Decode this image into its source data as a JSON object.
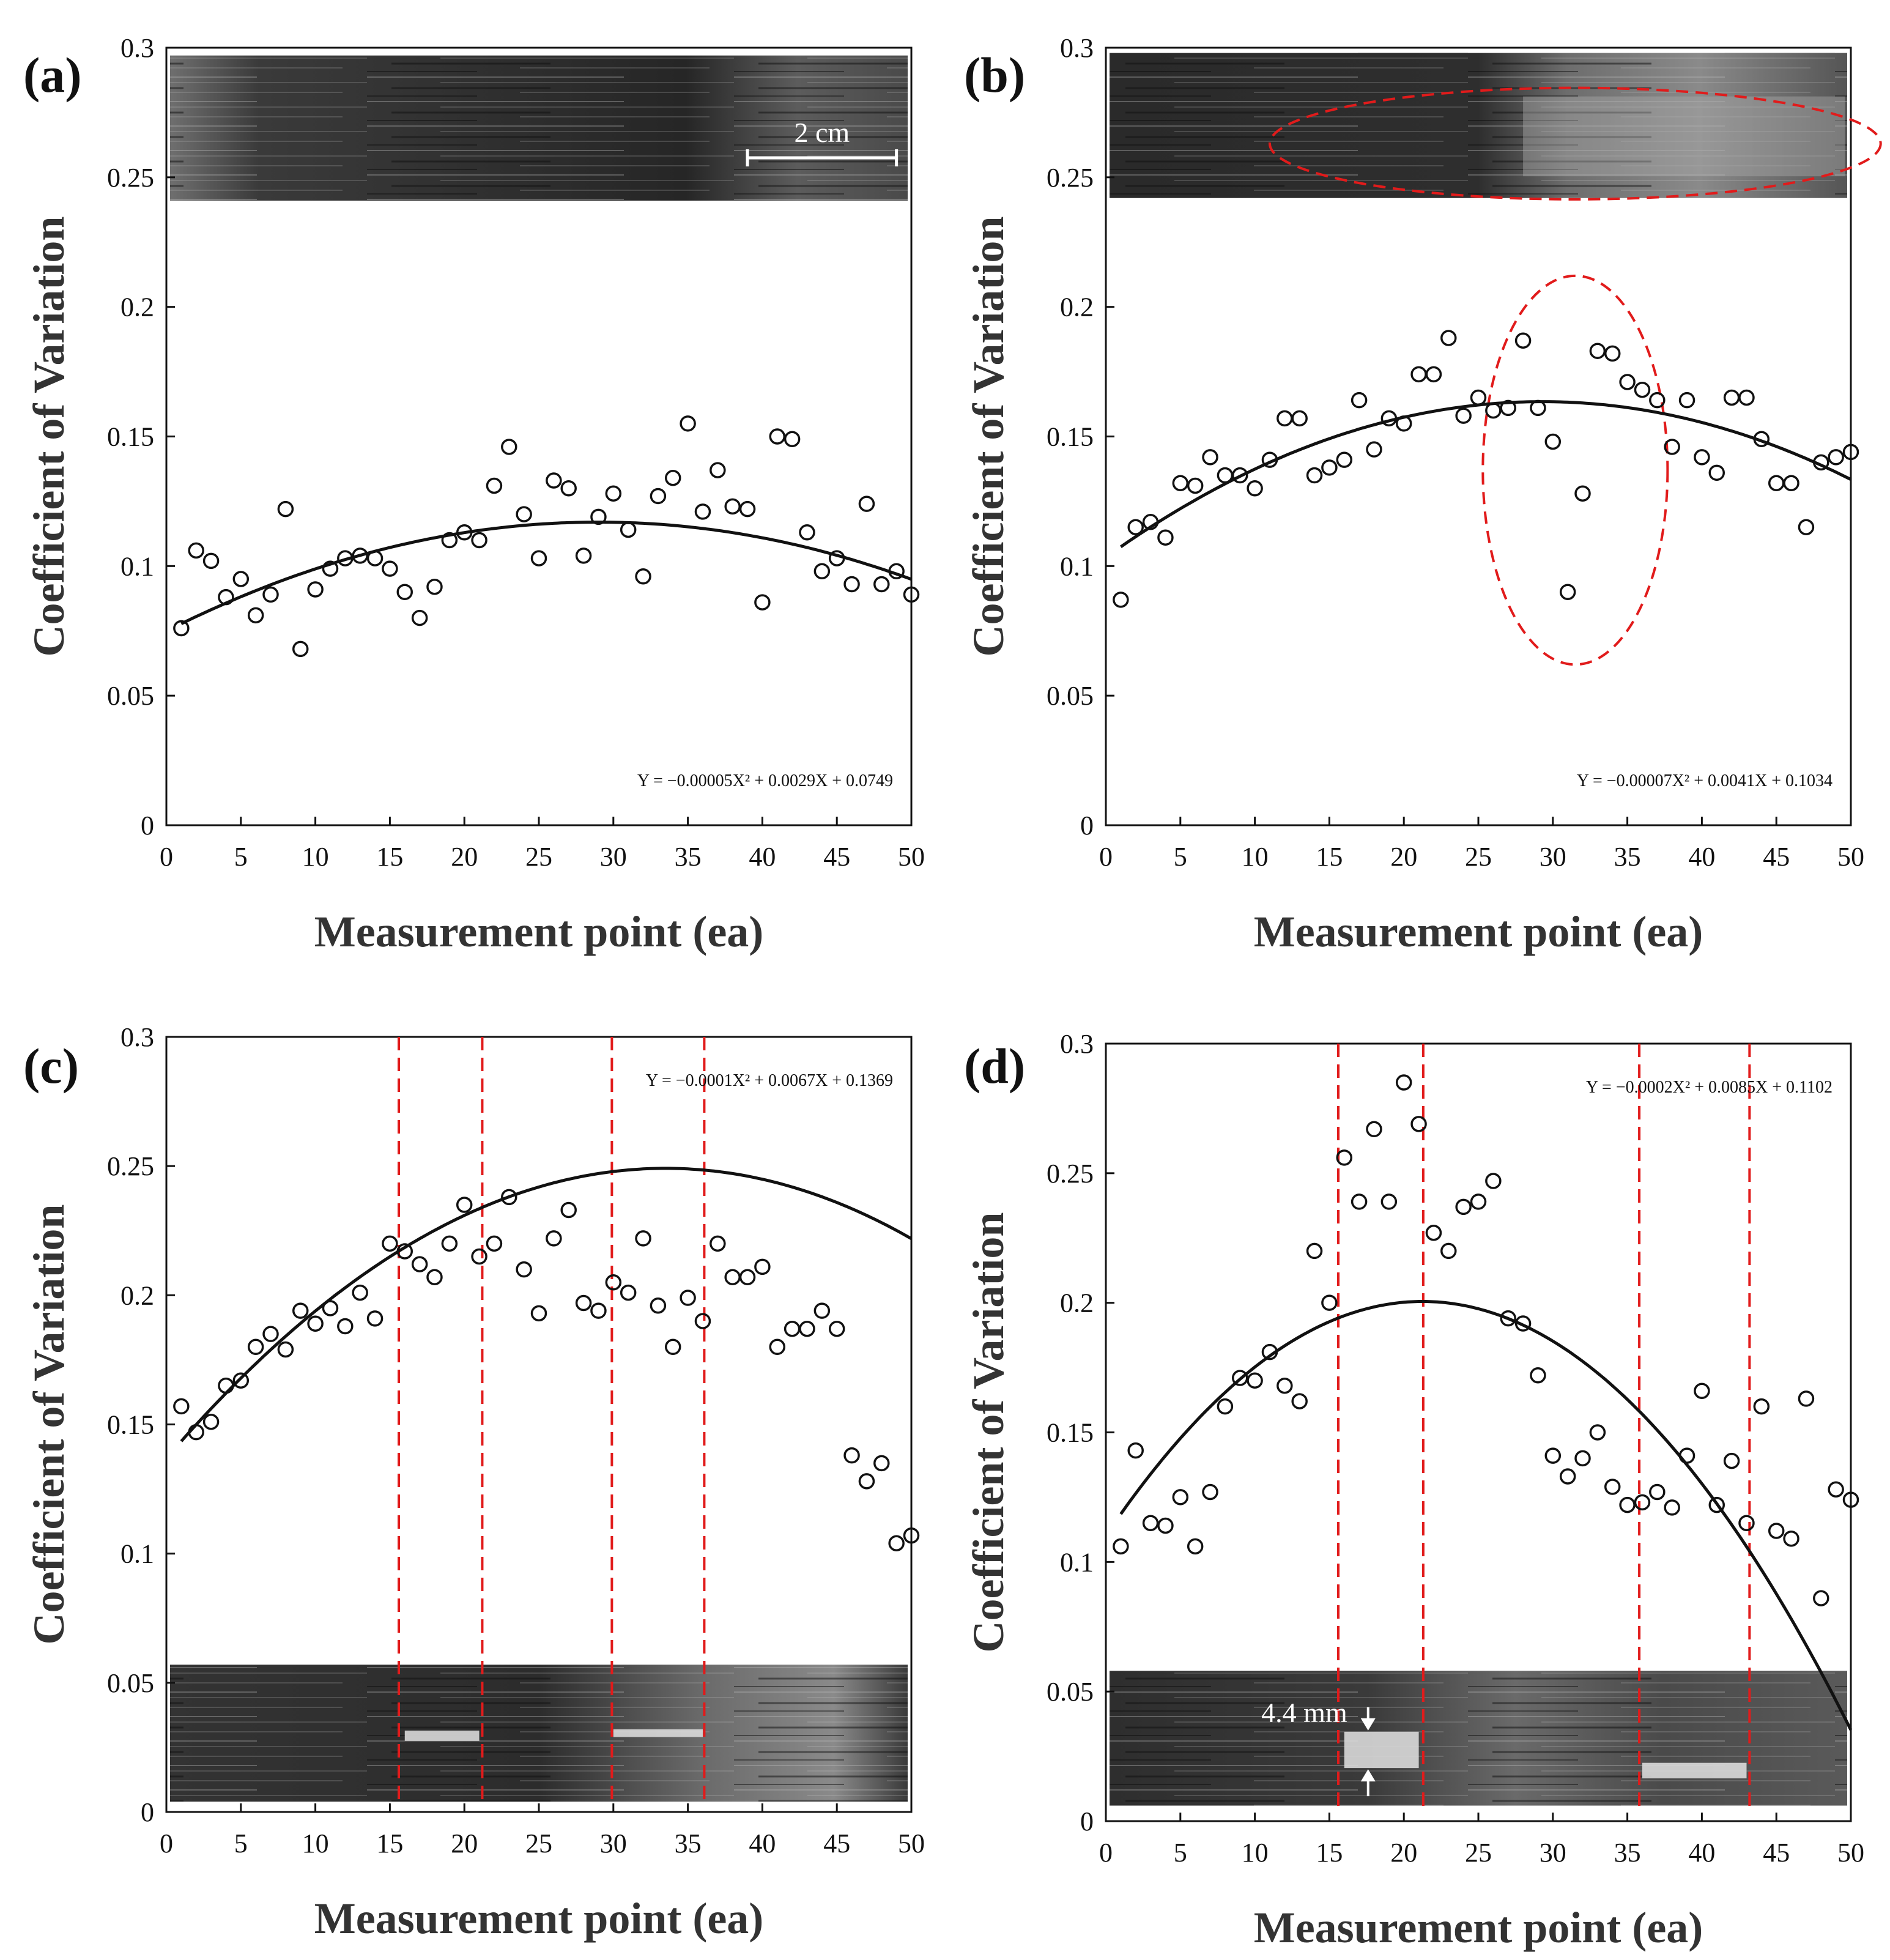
{
  "figure": {
    "description_free": true
  },
  "chart_data": [
    {
      "type": "scatter",
      "panel_label": "(a)",
      "xlabel": "Measurement point (ea)",
      "ylabel": "Coefficient of Variation",
      "xlim": [
        0,
        50
      ],
      "ylim": [
        0,
        0.3
      ],
      "xticks": [
        0,
        5,
        10,
        15,
        20,
        25,
        30,
        35,
        40,
        45,
        50
      ],
      "yticks": [
        0,
        0.05,
        0.1,
        0.15,
        0.2,
        0.25,
        0.3
      ],
      "ytick_labels": [
        "0",
        "0.05",
        "0.1",
        "0.15",
        "0.2",
        "0.25",
        "0.3"
      ],
      "x": [
        1,
        2,
        3,
        4,
        5,
        6,
        7,
        8,
        9,
        10,
        11,
        12,
        13,
        14,
        15,
        16,
        17,
        18,
        19,
        20,
        21,
        22,
        23,
        24,
        25,
        26,
        27,
        28,
        29,
        30,
        31,
        32,
        33,
        34,
        35,
        36,
        37,
        38,
        39,
        40,
        41,
        42,
        43,
        44,
        45,
        46,
        47,
        48,
        49,
        50
      ],
      "y": [
        0.076,
        0.106,
        0.102,
        0.088,
        0.095,
        0.081,
        0.089,
        0.122,
        0.068,
        0.091,
        0.099,
        0.103,
        0.104,
        0.103,
        0.099,
        0.09,
        0.08,
        0.092,
        0.11,
        0.113,
        0.11,
        0.131,
        0.146,
        0.12,
        0.103,
        0.133,
        0.13,
        0.104,
        0.119,
        0.128,
        0.114,
        0.096,
        0.127,
        0.134,
        0.155,
        0.121,
        0.137,
        0.123,
        0.122,
        0.086,
        0.15,
        0.149,
        0.113,
        0.098,
        0.103,
        0.093,
        0.124,
        0.093,
        0.098,
        0.089
      ],
      "fit": {
        "a": -5e-05,
        "b": 0.0029,
        "c": 0.0749,
        "x_range": [
          1,
          50
        ]
      },
      "equation": "Y = −0.00005X² + 0.0029X + 0.0749",
      "equation_position": "bottom-right",
      "image_strip": {
        "position": "top",
        "y_range": [
          0.241,
          0.297
        ],
        "highlight_x": [],
        "white_bands": []
      },
      "annotations": [
        {
          "text": "2 cm",
          "kind": "scale-bar"
        }
      ],
      "vlines": [],
      "ellipses": []
    },
    {
      "type": "scatter",
      "panel_label": "(b)",
      "xlabel": "Measurement point (ea)",
      "ylabel": "Coefficient of Variation",
      "xlim": [
        0,
        50
      ],
      "ylim": [
        0,
        0.3
      ],
      "xticks": [
        0,
        5,
        10,
        15,
        20,
        25,
        30,
        35,
        40,
        45,
        50
      ],
      "yticks": [
        0,
        0.05,
        0.1,
        0.15,
        0.2,
        0.25,
        0.3
      ],
      "ytick_labels": [
        "0",
        "0.05",
        "0.1",
        "0.15",
        "0.2",
        "0.25",
        "0.3"
      ],
      "x": [
        1,
        2,
        3,
        4,
        5,
        6,
        7,
        8,
        9,
        10,
        11,
        12,
        13,
        14,
        15,
        16,
        17,
        18,
        19,
        20,
        21,
        22,
        23,
        24,
        25,
        26,
        27,
        28,
        29,
        30,
        31,
        32,
        33,
        34,
        35,
        36,
        37,
        38,
        39,
        40,
        41,
        42,
        43,
        44,
        45,
        46,
        47,
        48,
        49,
        50
      ],
      "y": [
        0.087,
        0.115,
        0.117,
        0.111,
        0.132,
        0.131,
        0.142,
        0.135,
        0.135,
        0.13,
        0.141,
        0.157,
        0.157,
        0.135,
        0.138,
        0.141,
        0.164,
        0.145,
        0.157,
        0.155,
        0.174,
        0.174,
        0.188,
        0.158,
        0.165,
        0.16,
        0.161,
        0.187,
        0.161,
        0.148,
        0.09,
        0.128,
        0.183,
        0.182,
        0.171,
        0.168,
        0.164,
        0.146,
        0.164,
        0.142,
        0.136,
        0.165,
        0.165,
        0.149,
        0.132,
        0.132,
        0.115,
        0.14,
        0.142,
        0.144
      ],
      "fit": {
        "a": -7e-05,
        "b": 0.0041,
        "c": 0.1034,
        "x_range": [
          1,
          50
        ]
      },
      "equation": "Y = −0.00007X² + 0.0041X + 0.1034",
      "equation_position": "bottom-right",
      "image_strip": {
        "position": "top",
        "y_range": [
          0.242,
          0.298
        ],
        "highlight_x": [
          28,
          50
        ],
        "white_bands": []
      },
      "annotations": [],
      "vlines": [],
      "ellipses": [
        {
          "cx": 31.5,
          "cy": 0.137,
          "rx": 6.2,
          "ry": 0.075
        },
        {
          "cx": 31.5,
          "cy": 0.263,
          "rx": 20.5,
          "ry": 0.0215
        }
      ]
    },
    {
      "type": "scatter",
      "panel_label": "(c)",
      "xlabel": "Measurement point (ea)",
      "ylabel": "Coefficient of Variation",
      "xlim": [
        0,
        50
      ],
      "ylim": [
        0,
        0.3
      ],
      "xticks": [
        0,
        5,
        10,
        15,
        20,
        25,
        30,
        35,
        40,
        45,
        50
      ],
      "yticks": [
        0,
        0.05,
        0.1,
        0.15,
        0.2,
        0.25,
        0.3
      ],
      "ytick_labels": [
        "0",
        "0.05",
        "0.1",
        "0.15",
        "0.2",
        "0.25",
        "0.3"
      ],
      "x": [
        1,
        2,
        3,
        4,
        5,
        6,
        7,
        8,
        9,
        10,
        11,
        12,
        13,
        14,
        15,
        16,
        17,
        18,
        19,
        20,
        21,
        22,
        23,
        24,
        25,
        26,
        27,
        28,
        29,
        30,
        31,
        32,
        33,
        34,
        35,
        36,
        37,
        38,
        39,
        40,
        41,
        42,
        43,
        44,
        45,
        46,
        47,
        48,
        49,
        50
      ],
      "y": [
        0.157,
        0.147,
        0.151,
        0.165,
        0.167,
        0.18,
        0.185,
        0.179,
        0.194,
        0.189,
        0.195,
        0.188,
        0.201,
        0.191,
        0.22,
        0.217,
        0.212,
        0.207,
        0.22,
        0.235,
        0.215,
        0.22,
        0.238,
        0.21,
        0.193,
        0.222,
        0.233,
        0.197,
        0.194,
        0.205,
        0.201,
        0.222,
        0.196,
        0.18,
        0.199,
        0.19,
        0.22,
        0.207,
        0.207,
        0.211,
        0.18,
        0.187,
        0.187,
        0.194,
        0.187,
        0.138,
        0.128,
        0.135,
        0.104,
        0.107
      ],
      "fit": {
        "a": -0.0001,
        "b": 0.0067,
        "c": 0.1369,
        "x_range": [
          1,
          50
        ]
      },
      "equation": "Y = −0.0001X² + 0.0067X + 0.1369",
      "equation_position": "top-right",
      "image_strip": {
        "position": "bottom",
        "y_range": [
          0.004,
          0.057
        ],
        "highlight_x": [],
        "white_bands": [
          {
            "x": [
              16,
              21
            ],
            "y": 0.0295,
            "h": 0.004
          },
          {
            "x": [
              30,
              36
            ],
            "y": 0.0305,
            "h": 0.003
          }
        ]
      },
      "annotations": [],
      "vlines": [
        15.6,
        21.2,
        29.9,
        36.1
      ],
      "ellipses": []
    },
    {
      "type": "scatter",
      "panel_label": "(d)",
      "xlabel": "Measurement point (ea)",
      "ylabel": "Coefficient of Variation",
      "xlim": [
        0,
        50
      ],
      "ylim": [
        0,
        0.3
      ],
      "xticks": [
        0,
        5,
        10,
        15,
        20,
        25,
        30,
        35,
        40,
        45,
        50
      ],
      "yticks": [
        0,
        0.05,
        0.1,
        0.15,
        0.2,
        0.25,
        0.3
      ],
      "ytick_labels": [
        "0",
        "0.05",
        "0.1",
        "0.15",
        "0.2",
        "0.25",
        "0.3"
      ],
      "x": [
        1,
        2,
        3,
        4,
        5,
        6,
        7,
        8,
        9,
        10,
        11,
        12,
        13,
        14,
        15,
        16,
        17,
        18,
        19,
        20,
        21,
        22,
        23,
        24,
        25,
        26,
        27,
        28,
        29,
        30,
        31,
        32,
        33,
        34,
        35,
        36,
        37,
        38,
        39,
        40,
        41,
        42,
        43,
        44,
        45,
        46,
        47,
        48,
        49,
        50
      ],
      "y": [
        0.106,
        0.143,
        0.115,
        0.114,
        0.125,
        0.106,
        0.127,
        0.16,
        0.171,
        0.17,
        0.181,
        0.168,
        0.162,
        0.22,
        0.2,
        0.256,
        0.239,
        0.267,
        0.239,
        0.285,
        0.269,
        0.227,
        0.22,
        0.237,
        0.239,
        0.247,
        0.194,
        0.192,
        0.172,
        0.141,
        0.133,
        0.14,
        0.15,
        0.129,
        0.122,
        0.123,
        0.127,
        0.121,
        0.141,
        0.166,
        0.122,
        0.139,
        0.115,
        0.16,
        0.112,
        0.109,
        0.163,
        0.086,
        0.128,
        0.124
      ],
      "fit": {
        "a": -0.0002,
        "b": 0.0085,
        "c": 0.1102,
        "x_range": [
          1,
          50
        ]
      },
      "equation": "Y = −0.0002X² + 0.0085X + 0.1102",
      "equation_position": "top-right",
      "image_strip": {
        "position": "bottom",
        "y_range": [
          0.006,
          0.058
        ],
        "highlight_x": [],
        "white_bands": [
          {
            "x": [
              16,
              21
            ],
            "y": 0.0275,
            "h": 0.014
          },
          {
            "x": [
              36,
              43
            ],
            "y": 0.0195,
            "h": 0.006
          }
        ]
      },
      "annotations": [
        {
          "text": "4.4 mm",
          "kind": "dimension"
        }
      ],
      "vlines": [
        15.6,
        21.3,
        35.8,
        43.2
      ],
      "ellipses": []
    }
  ],
  "colors": {
    "axis": "#111111",
    "marker_stroke": "#111111",
    "fit_line": "#111111",
    "red_dash": "#e11b1b",
    "strip_dark": "#2b2b2b",
    "strip_light": "#8a8a8a"
  }
}
